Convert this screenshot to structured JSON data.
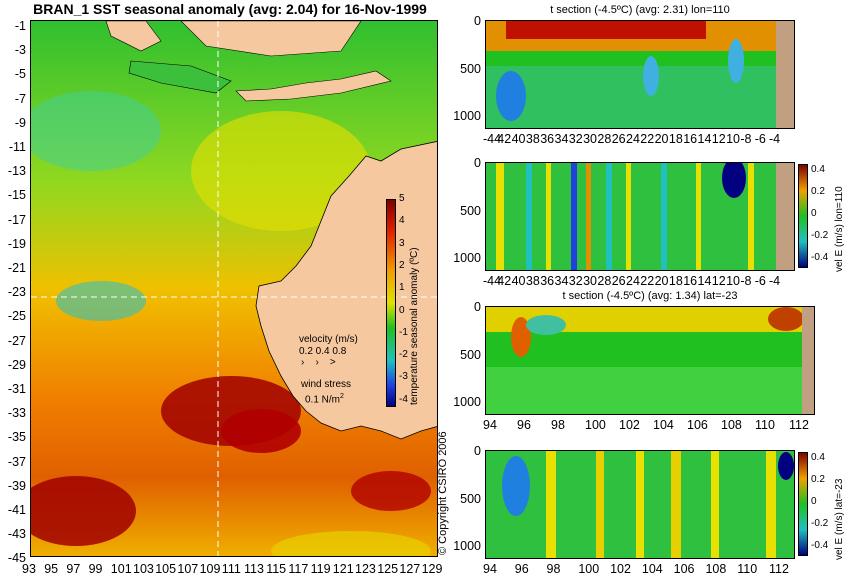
{
  "map": {
    "title": "BRAN_1 SST seasonal anomaly (avg: 2.04) for 16-Nov-1999",
    "lat_ticks": [
      "-1",
      "-3",
      "-5",
      "-7",
      "-9",
      "-11",
      "-13",
      "-15",
      "-17",
      "-19",
      "-21",
      "-23",
      "-25",
      "-27",
      "-29",
      "-31",
      "-33",
      "-35",
      "-37",
      "-39",
      "-41",
      "-43",
      "-45"
    ],
    "lon_ticks": [
      "93",
      "95",
      "97",
      "99",
      "101",
      "103",
      "105",
      "107",
      "109",
      "111",
      "113",
      "115",
      "117",
      "119",
      "121",
      "123",
      "125",
      "127",
      "129"
    ],
    "colorbar": {
      "label": "temperature seasonal anomaly (ºC)",
      "ticks": [
        "5",
        "4",
        "3",
        "2",
        "1",
        "0",
        "-1",
        "-2",
        "-3",
        "-4"
      ]
    },
    "legend": {
      "velocity_label": "velocity (m/s)",
      "velocity_values": "0.2 0.4 0.8",
      "wind_label": "wind stress",
      "wind_value": "0.1 N/m",
      "wind_exp": "2"
    },
    "copyright": "© Copyright CSIRO 2006",
    "section_lines": {
      "lon": 110,
      "lat": -23
    }
  },
  "panels": [
    {
      "title": "t section (-4.5ºC) (avg: 2.31) lon=110",
      "depth_ticks": [
        "0",
        "500",
        "1000"
      ],
      "x_ticks": [
        "-44",
        "42",
        "40",
        "38",
        "36",
        "34",
        "32",
        "30",
        "28",
        "26",
        "24",
        "22",
        "20",
        "18",
        "16",
        "14",
        "12",
        "10",
        "-8",
        "-6",
        "-4"
      ],
      "has_colorbar": false
    },
    {
      "title": "",
      "depth_ticks": [
        "0",
        "500",
        "1000"
      ],
      "x_ticks": [
        "-44",
        "42",
        "40",
        "38",
        "36",
        "34",
        "32",
        "30",
        "28",
        "26",
        "24",
        "22",
        "20",
        "18",
        "16",
        "14",
        "12",
        "10",
        "-8",
        "-6",
        "-4"
      ],
      "has_colorbar": true,
      "colorbar_label": "vel E (m/s) lon=110",
      "colorbar_ticks": [
        "0.4",
        "0.2",
        "0",
        "-0.2",
        "-0.4"
      ]
    },
    {
      "title": "t section (-4.5ºC) (avg: 1.34) lat=-23",
      "depth_ticks": [
        "0",
        "500",
        "1000"
      ],
      "x_ticks": [
        "94",
        "96",
        "98",
        "100",
        "102",
        "104",
        "106",
        "108",
        "110",
        "112"
      ],
      "has_colorbar": false
    },
    {
      "title": "",
      "depth_ticks": [
        "0",
        "500",
        "1000"
      ],
      "x_ticks": [
        "94",
        "96",
        "98",
        "100",
        "102",
        "104",
        "106",
        "108",
        "110",
        "112"
      ],
      "has_colorbar": true,
      "colorbar_label": "vel E (m/s) lat=-23",
      "colorbar_ticks": [
        "0.4",
        "0.2",
        "0",
        "-0.2",
        "-0.4"
      ]
    }
  ],
  "colors": {
    "land": "#f5c8a0",
    "deep_red": "#a00000",
    "red": "#e03000",
    "orange": "#f0a000",
    "yellow": "#e8e000",
    "green": "#20c020",
    "cyan": "#20c0c0",
    "blue": "#2040e0",
    "navy": "#000080"
  }
}
